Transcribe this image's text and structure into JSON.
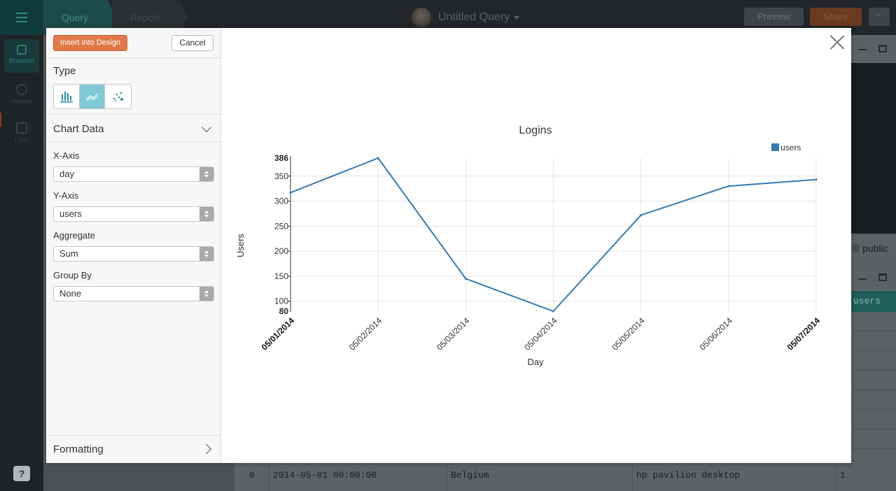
{
  "app": {
    "tabs": [
      "Query",
      "Report"
    ],
    "query_title": "Untitled Query",
    "preview_label": "Preview",
    "share_label": "Share",
    "more_label": "···",
    "rail": [
      {
        "label": "Browser",
        "icon": "database-icon"
      },
      {
        "label": "History",
        "icon": "clock-icon"
      },
      {
        "label": "Lists",
        "icon": "list-add-icon"
      }
    ],
    "help_label": "?",
    "schema_label": "public",
    "results_column": "users",
    "visible_row": {
      "index": "9",
      "date": "2014-05-01 00:00:00",
      "country": "Belgium",
      "device": "hp pavilion desktop",
      "users": "1"
    }
  },
  "panel": {
    "insert_label": "Insert Into Design",
    "cancel_label": "Cancel",
    "type_label": "Type",
    "types": [
      {
        "icon": "bar-chart-icon",
        "active": false
      },
      {
        "icon": "line-chart-icon",
        "active": true
      },
      {
        "icon": "scatter-chart-icon",
        "active": false
      }
    ],
    "chart_data_label": "Chart Data",
    "xaxis_label": "X-Axis",
    "xaxis_value": "day",
    "yaxis_label": "Y-Axis",
    "yaxis_value": "users",
    "aggregate_label": "Aggregate",
    "aggregate_value": "Sum",
    "groupby_label": "Group By",
    "groupby_value": "None",
    "formatting_label": "Formatting"
  },
  "colors": {
    "accent": "#e07848",
    "teal": "#7ecad6",
    "series": "#3679b5"
  },
  "chart_data": {
    "type": "line",
    "title": "Logins",
    "xlabel": "Day",
    "ylabel": "Users",
    "categories": [
      "05/01/2014",
      "05/02/2014",
      "05/03/2014",
      "05/04/2014",
      "05/05/2014",
      "05/06/2014",
      "05/07/2014"
    ],
    "series": [
      {
        "name": "users",
        "values": [
          317,
          386,
          145,
          80,
          272,
          330,
          343
        ]
      }
    ],
    "ylim": [
      80,
      386
    ],
    "yticks": [
      100,
      150,
      200,
      250,
      300,
      350
    ],
    "ybound_labels": [
      "80",
      "386"
    ],
    "grid": true,
    "legend": "top-right"
  }
}
